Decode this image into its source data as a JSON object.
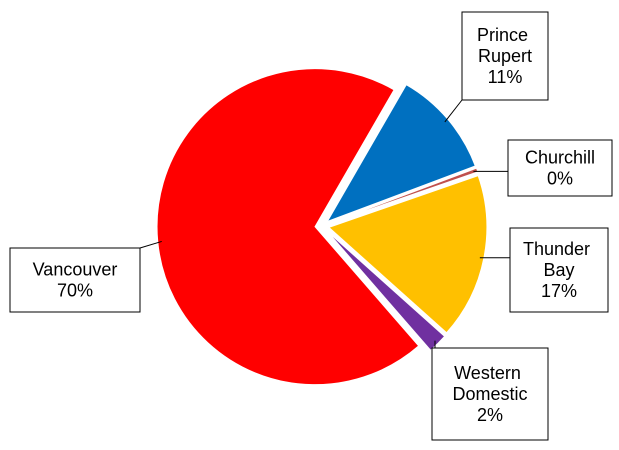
{
  "chart_data": {
    "type": "pie",
    "categories": [
      "Prince Rupert",
      "Churchill",
      "Thunder Bay",
      "Western Domestic",
      "Vancouver"
    ],
    "values": [
      11,
      0.4,
      17,
      2,
      70
    ],
    "value_labels": [
      "11%",
      "0%",
      "17%",
      "2%",
      "70%"
    ],
    "colors": [
      "#0070c0",
      "#c0504d",
      "#ffc000",
      "#7030a0",
      "#ff0000"
    ],
    "start_angle": 30
  }
}
